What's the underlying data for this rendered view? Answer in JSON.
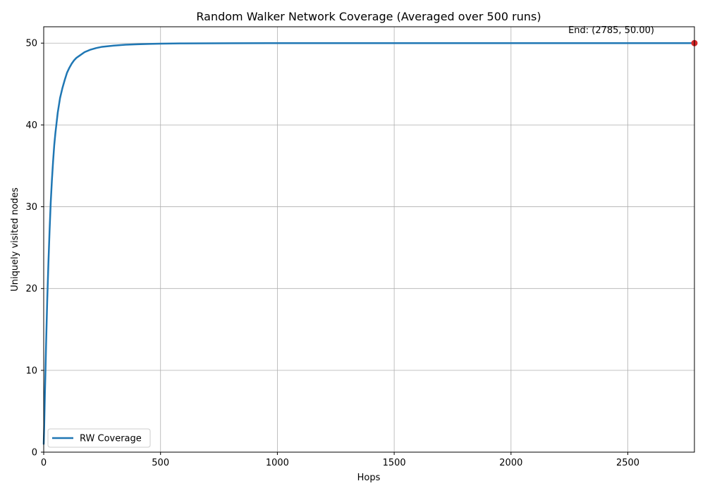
{
  "chart_data": {
    "type": "line",
    "title": "Random Walker Network Coverage (Averaged over 500 runs)",
    "xlabel": "Hops",
    "ylabel": "Uniquely visited nodes",
    "xlim": [
      0,
      2785
    ],
    "ylim": [
      0,
      52
    ],
    "grid": true,
    "xticks": [
      0,
      500,
      1000,
      1500,
      2000,
      2500
    ],
    "yticks": [
      0,
      10,
      20,
      30,
      40,
      50
    ],
    "legend_position": "lower-left",
    "series": [
      {
        "name": "RW Coverage",
        "color": "#1f77b4",
        "x": [
          0,
          2,
          5,
          8,
          10,
          15,
          20,
          25,
          30,
          35,
          40,
          45,
          50,
          60,
          70,
          80,
          90,
          100,
          110,
          120,
          130,
          140,
          150,
          175,
          200,
          225,
          250,
          300,
          350,
          400,
          450,
          500,
          600,
          700,
          800,
          1000,
          1500,
          2000,
          2500,
          2785
        ],
        "y": [
          1.0,
          3.0,
          7.0,
          10.5,
          13.0,
          18.5,
          23.0,
          27.0,
          30.5,
          33.2,
          35.5,
          37.5,
          39.0,
          41.5,
          43.3,
          44.5,
          45.5,
          46.4,
          47.0,
          47.5,
          47.9,
          48.2,
          48.4,
          48.9,
          49.2,
          49.4,
          49.55,
          49.7,
          49.8,
          49.86,
          49.9,
          49.93,
          49.97,
          49.98,
          49.99,
          50.0,
          50.0,
          50.0,
          50.0,
          50.0
        ]
      }
    ],
    "end_point": {
      "x": 2785,
      "y": 50.0,
      "color": "#d62728",
      "label": "End: (2785, 50.00)"
    }
  }
}
